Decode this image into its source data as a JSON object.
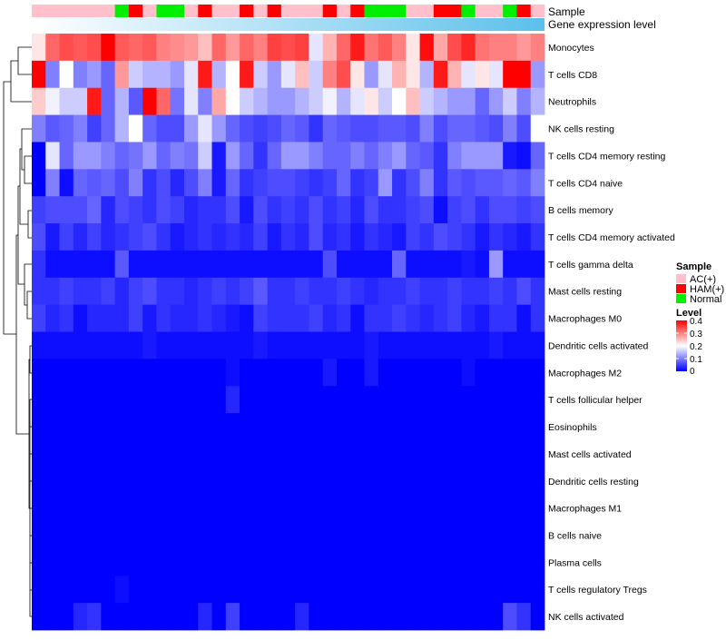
{
  "chart_data": {
    "type": "heatmap",
    "title": "",
    "annotation_tracks": [
      {
        "name": "Sample",
        "label": "Sample"
      },
      {
        "name": "Gene expression level",
        "label": "Gene expression level"
      }
    ],
    "sample_groups": [
      "A",
      "A",
      "A",
      "A",
      "A",
      "A",
      "N",
      "H",
      "A",
      "N",
      "N",
      "A",
      "H",
      "A",
      "A",
      "H",
      "A",
      "H",
      "A",
      "A",
      "A",
      "H",
      "A",
      "H",
      "N",
      "N",
      "N",
      "A",
      "A",
      "H",
      "H",
      "N",
      "A",
      "A",
      "N",
      "H",
      "A"
    ],
    "gene_expression_level": [
      0.0,
      0.03,
      0.06,
      0.08,
      0.11,
      0.14,
      0.17,
      0.19,
      0.22,
      0.25,
      0.28,
      0.31,
      0.33,
      0.36,
      0.39,
      0.42,
      0.44,
      0.47,
      0.5,
      0.53,
      0.56,
      0.58,
      0.61,
      0.64,
      0.67,
      0.69,
      0.72,
      0.75,
      0.78,
      0.81,
      0.83,
      0.86,
      0.89,
      0.92,
      0.94,
      0.97,
      1.0
    ],
    "rows": [
      "Monocytes",
      "T cells CD8",
      "Neutrophils",
      "NK cells resting",
      "T cells CD4 memory resting",
      "T cells CD4 naive",
      "B cells memory",
      "T cells CD4 memory activated",
      "T cells gamma delta",
      "Mast cells resting",
      "Macrophages M0",
      "Dendritic cells activated",
      "Macrophages M2",
      "T cells follicular helper",
      "Eosinophils",
      "Mast cells activated",
      "Dendritic cells resting",
      "Macrophages M1",
      "B cells naive",
      "Plasma cells",
      "T cells regulatory  Tregs",
      "NK cells activated"
    ],
    "values": [
      [
        0.22,
        0.32,
        0.34,
        0.33,
        0.34,
        0.4,
        0.33,
        0.32,
        0.33,
        0.3,
        0.29,
        0.28,
        0.25,
        0.32,
        0.28,
        0.32,
        0.3,
        0.35,
        0.34,
        0.35,
        0.18,
        0.26,
        0.32,
        0.38,
        0.31,
        0.33,
        0.3,
        0.22,
        0.39,
        0.27,
        0.34,
        0.37,
        0.31,
        0.3,
        0.3,
        0.28,
        0.3
      ],
      [
        0.4,
        0.1,
        0.2,
        0.1,
        0.12,
        0.08,
        0.28,
        0.16,
        0.14,
        0.14,
        0.12,
        0.18,
        0.38,
        0.14,
        0.2,
        0.38,
        0.16,
        0.12,
        0.18,
        0.25,
        0.16,
        0.3,
        0.34,
        0.22,
        0.12,
        0.18,
        0.26,
        0.22,
        0.14,
        0.38,
        0.26,
        0.18,
        0.22,
        0.18,
        0.4,
        0.4,
        0.12
      ],
      [
        0.24,
        0.19,
        0.16,
        0.16,
        0.38,
        0.08,
        0.14,
        0.07,
        0.4,
        0.32,
        0.09,
        0.18,
        0.1,
        0.27,
        0.2,
        0.16,
        0.14,
        0.12,
        0.12,
        0.14,
        0.16,
        0.19,
        0.14,
        0.18,
        0.22,
        0.16,
        0.2,
        0.25,
        0.16,
        0.14,
        0.12,
        0.12,
        0.08,
        0.12,
        0.16,
        0.1,
        0.14
      ],
      [
        0.1,
        0.07,
        0.08,
        0.1,
        0.05,
        0.08,
        0.14,
        0.2,
        0.08,
        0.06,
        0.06,
        0.12,
        0.18,
        0.12,
        0.08,
        0.06,
        0.05,
        0.06,
        0.08,
        0.07,
        0.04,
        0.08,
        0.07,
        0.06,
        0.06,
        0.07,
        0.07,
        0.06,
        0.1,
        0.06,
        0.08,
        0.08,
        0.07,
        0.06,
        0.1,
        0.06,
        0.2
      ],
      [
        0.0,
        0.18,
        0.08,
        0.12,
        0.12,
        0.1,
        0.08,
        0.09,
        0.12,
        0.08,
        0.1,
        0.09,
        0.16,
        0.02,
        0.12,
        0.08,
        0.04,
        0.08,
        0.12,
        0.12,
        0.1,
        0.08,
        0.08,
        0.1,
        0.08,
        0.1,
        0.12,
        0.08,
        0.07,
        0.04,
        0.1,
        0.12,
        0.12,
        0.12,
        0.02,
        0.01,
        0.08
      ],
      [
        0.0,
        0.1,
        0.01,
        0.08,
        0.07,
        0.08,
        0.06,
        0.1,
        0.04,
        0.06,
        0.03,
        0.06,
        0.1,
        0.02,
        0.08,
        0.04,
        0.05,
        0.06,
        0.06,
        0.05,
        0.04,
        0.05,
        0.08,
        0.04,
        0.05,
        0.12,
        0.04,
        0.06,
        0.1,
        0.04,
        0.07,
        0.06,
        0.07,
        0.07,
        0.08,
        0.07,
        0.1
      ],
      [
        0.05,
        0.06,
        0.06,
        0.06,
        0.08,
        0.03,
        0.06,
        0.05,
        0.04,
        0.06,
        0.05,
        0.03,
        0.04,
        0.04,
        0.06,
        0.02,
        0.06,
        0.04,
        0.05,
        0.04,
        0.06,
        0.04,
        0.05,
        0.03,
        0.06,
        0.04,
        0.04,
        0.05,
        0.06,
        0.01,
        0.05,
        0.06,
        0.04,
        0.06,
        0.06,
        0.05,
        0.06
      ],
      [
        0.06,
        0.02,
        0.05,
        0.03,
        0.05,
        0.03,
        0.04,
        0.05,
        0.06,
        0.04,
        0.02,
        0.03,
        0.04,
        0.03,
        0.04,
        0.03,
        0.05,
        0.02,
        0.04,
        0.03,
        0.06,
        0.03,
        0.04,
        0.02,
        0.04,
        0.03,
        0.02,
        0.05,
        0.04,
        0.06,
        0.05,
        0.04,
        0.02,
        0.04,
        0.03,
        0.02,
        0.04
      ],
      [
        0.04,
        0.01,
        0.01,
        0.01,
        0.01,
        0.01,
        0.07,
        0.01,
        0.01,
        0.01,
        0.01,
        0.01,
        0.01,
        0.01,
        0.01,
        0.01,
        0.01,
        0.01,
        0.01,
        0.01,
        0.01,
        0.06,
        0.01,
        0.01,
        0.01,
        0.01,
        0.08,
        0.01,
        0.01,
        0.01,
        0.01,
        0.02,
        0.01,
        0.12,
        0.01,
        0.01,
        0.01
      ],
      [
        0.04,
        0.04,
        0.05,
        0.04,
        0.04,
        0.05,
        0.03,
        0.05,
        0.06,
        0.04,
        0.04,
        0.03,
        0.04,
        0.05,
        0.04,
        0.05,
        0.07,
        0.04,
        0.04,
        0.05,
        0.04,
        0.04,
        0.05,
        0.04,
        0.03,
        0.04,
        0.04,
        0.05,
        0.04,
        0.04,
        0.05,
        0.04,
        0.04,
        0.05,
        0.04,
        0.06,
        0.04
      ],
      [
        0.05,
        0.03,
        0.04,
        0.01,
        0.03,
        0.03,
        0.03,
        0.05,
        0.02,
        0.04,
        0.03,
        0.03,
        0.04,
        0.03,
        0.02,
        0.01,
        0.05,
        0.04,
        0.04,
        0.04,
        0.05,
        0.03,
        0.04,
        0.01,
        0.04,
        0.04,
        0.05,
        0.04,
        0.03,
        0.04,
        0.05,
        0.03,
        0.02,
        0.04,
        0.04,
        0.01,
        0.04
      ],
      [
        0.01,
        0.01,
        0.01,
        0.01,
        0.01,
        0.01,
        0.01,
        0.01,
        0.02,
        0.01,
        0.01,
        0.01,
        0.01,
        0.01,
        0.01,
        0.01,
        0.02,
        0.01,
        0.01,
        0.01,
        0.01,
        0.01,
        0.01,
        0.01,
        0.02,
        0.01,
        0.01,
        0.01,
        0.01,
        0.01,
        0.01,
        0.01,
        0.01,
        0.02,
        0.01,
        0.01,
        0.01
      ],
      [
        0.0,
        0.0,
        0.0,
        0.0,
        0.0,
        0.0,
        0.0,
        0.0,
        0.0,
        0.0,
        0.0,
        0.0,
        0.0,
        0.0,
        0.01,
        0.0,
        0.0,
        0.0,
        0.0,
        0.0,
        0.0,
        0.02,
        0.0,
        0.0,
        0.02,
        0.0,
        0.0,
        0.0,
        0.0,
        0.0,
        0.0,
        0.01,
        0.0,
        0.0,
        0.0,
        0.0,
        0.0
      ],
      [
        0.0,
        0.0,
        0.0,
        0.0,
        0.0,
        0.0,
        0.0,
        0.0,
        0.0,
        0.0,
        0.0,
        0.0,
        0.0,
        0.0,
        0.03,
        0.0,
        0.0,
        0.0,
        0.0,
        0.0,
        0.0,
        0.0,
        0.0,
        0.0,
        0.0,
        0.0,
        0.0,
        0.0,
        0.0,
        0.0,
        0.0,
        0.0,
        0.0,
        0.0,
        0.0,
        0.0,
        0.0
      ],
      [
        0.0,
        0.0,
        0.0,
        0.0,
        0.0,
        0.0,
        0.0,
        0.0,
        0.0,
        0.0,
        0.0,
        0.0,
        0.0,
        0.0,
        0.0,
        0.0,
        0.0,
        0.0,
        0.0,
        0.0,
        0.0,
        0.0,
        0.0,
        0.0,
        0.0,
        0.0,
        0.0,
        0.0,
        0.0,
        0.0,
        0.0,
        0.0,
        0.0,
        0.0,
        0.0,
        0.0,
        0.0
      ],
      [
        0.0,
        0.0,
        0.0,
        0.0,
        0.0,
        0.0,
        0.0,
        0.0,
        0.0,
        0.0,
        0.0,
        0.0,
        0.0,
        0.0,
        0.0,
        0.0,
        0.0,
        0.0,
        0.0,
        0.0,
        0.0,
        0.0,
        0.0,
        0.0,
        0.0,
        0.0,
        0.0,
        0.0,
        0.0,
        0.0,
        0.0,
        0.0,
        0.0,
        0.0,
        0.0,
        0.0,
        0.0
      ],
      [
        0.0,
        0.0,
        0.0,
        0.0,
        0.0,
        0.0,
        0.0,
        0.0,
        0.0,
        0.0,
        0.0,
        0.0,
        0.0,
        0.0,
        0.0,
        0.0,
        0.0,
        0.0,
        0.0,
        0.0,
        0.0,
        0.0,
        0.0,
        0.0,
        0.0,
        0.0,
        0.0,
        0.0,
        0.0,
        0.0,
        0.0,
        0.0,
        0.0,
        0.0,
        0.0,
        0.0,
        0.0
      ],
      [
        0.0,
        0.0,
        0.0,
        0.0,
        0.0,
        0.0,
        0.0,
        0.0,
        0.0,
        0.0,
        0.0,
        0.0,
        0.0,
        0.0,
        0.0,
        0.0,
        0.0,
        0.0,
        0.0,
        0.0,
        0.0,
        0.0,
        0.0,
        0.0,
        0.0,
        0.0,
        0.0,
        0.0,
        0.0,
        0.0,
        0.0,
        0.0,
        0.0,
        0.0,
        0.0,
        0.0,
        0.0
      ],
      [
        0.0,
        0.0,
        0.0,
        0.0,
        0.0,
        0.0,
        0.0,
        0.0,
        0.0,
        0.0,
        0.0,
        0.0,
        0.0,
        0.0,
        0.0,
        0.0,
        0.0,
        0.0,
        0.0,
        0.0,
        0.0,
        0.0,
        0.0,
        0.0,
        0.0,
        0.0,
        0.0,
        0.0,
        0.0,
        0.0,
        0.0,
        0.0,
        0.0,
        0.0,
        0.0,
        0.0,
        0.0
      ],
      [
        0.0,
        0.0,
        0.0,
        0.0,
        0.0,
        0.0,
        0.0,
        0.0,
        0.0,
        0.0,
        0.0,
        0.0,
        0.0,
        0.0,
        0.0,
        0.0,
        0.0,
        0.0,
        0.0,
        0.0,
        0.0,
        0.0,
        0.0,
        0.0,
        0.0,
        0.0,
        0.0,
        0.0,
        0.0,
        0.0,
        0.0,
        0.0,
        0.0,
        0.0,
        0.0,
        0.0,
        0.0
      ],
      [
        0.0,
        0.0,
        0.0,
        0.0,
        0.0,
        0.0,
        0.01,
        0.0,
        0.0,
        0.0,
        0.0,
        0.0,
        0.0,
        0.0,
        0.0,
        0.0,
        0.0,
        0.0,
        0.0,
        0.0,
        0.0,
        0.0,
        0.0,
        0.0,
        0.0,
        0.0,
        0.0,
        0.0,
        0.0,
        0.0,
        0.0,
        0.0,
        0.0,
        0.0,
        0.0,
        0.0,
        0.0
      ],
      [
        0.0,
        0.0,
        0.0,
        0.03,
        0.04,
        0.0,
        0.0,
        0.0,
        0.0,
        0.0,
        0.0,
        0.0,
        0.03,
        0.0,
        0.05,
        0.0,
        0.0,
        0.0,
        0.0,
        0.03,
        0.0,
        0.0,
        0.0,
        0.0,
        0.0,
        0.0,
        0.0,
        0.0,
        0.0,
        0.0,
        0.0,
        0.0,
        0.0,
        0.0,
        0.06,
        0.04,
        0.0
      ]
    ],
    "scale": {
      "min": 0,
      "max": 0.4,
      "colors": [
        "#0000ff",
        "#ffffff",
        "#ff0000"
      ]
    },
    "legend": {
      "sample": {
        "title": "Sample",
        "entries": [
          {
            "key": "A",
            "label": "AC(+)",
            "color": "#ffc0cb"
          },
          {
            "key": "H",
            "label": "HAM(+)",
            "color": "#ff0000"
          },
          {
            "key": "N",
            "label": "Normal",
            "color": "#00ee00"
          }
        ]
      },
      "level": {
        "title": "Level",
        "ticks": [
          "0.4",
          "0.3",
          "0.2",
          "0.1",
          "0"
        ]
      }
    },
    "gene_expression_colors": [
      "#ffffff",
      "#5bc0eb"
    ]
  }
}
